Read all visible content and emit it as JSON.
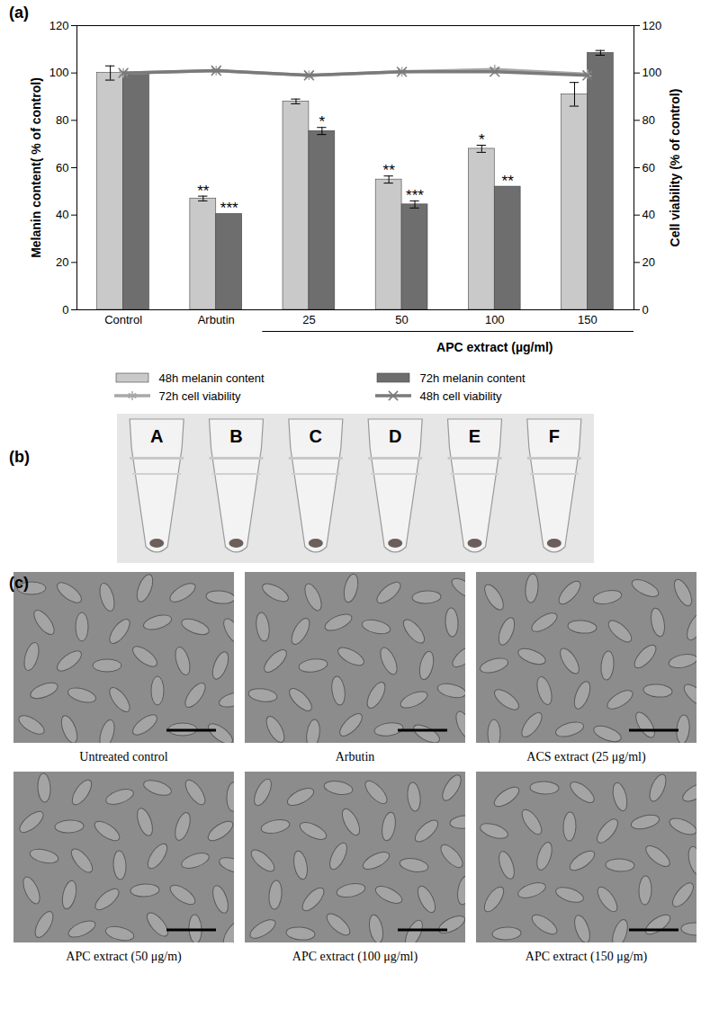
{
  "chart_data": {
    "type": "bar",
    "panel": "(a)",
    "categories": [
      "Control",
      "Arbutin",
      "25",
      "50",
      "100",
      "150"
    ],
    "category_group": {
      "label": "APC extract (µg/ml)",
      "categories": [
        "25",
        "50",
        "100",
        "150"
      ]
    },
    "ylabel": "Melanin content( % of control)",
    "y2label": "Cell viability (% of control)",
    "ylim": [
      0,
      120
    ],
    "yticks": [
      0,
      20,
      40,
      60,
      80,
      100,
      120
    ],
    "y2lim": [
      0,
      120
    ],
    "y2ticks": [
      0,
      20,
      40,
      60,
      80,
      100,
      120
    ],
    "legend": "bottom",
    "series": [
      {
        "name": "48h melanin content",
        "type": "bar",
        "color": "#c9c9c9",
        "values": [
          100,
          47,
          88,
          55,
          68,
          91
        ],
        "errors": [
          3,
          1,
          1,
          1.5,
          1.5,
          5
        ],
        "significance": [
          null,
          "**",
          null,
          "**",
          "*",
          null
        ]
      },
      {
        "name": "72h melanin content",
        "type": "bar",
        "color": "#6e6e6e",
        "values": [
          100,
          40.5,
          75.5,
          44.5,
          52,
          108.5
        ],
        "errors": [
          0,
          0,
          1.5,
          1.5,
          0,
          1
        ],
        "significance": [
          null,
          "***",
          "*",
          "***",
          "**",
          null
        ]
      },
      {
        "name": "72h cell viability",
        "type": "line",
        "axis": "y2",
        "color": "#a8a8a8",
        "marker": "asterisk",
        "values": [
          100,
          101,
          99,
          100.5,
          101.5,
          99.5
        ]
      },
      {
        "name": "48h cell viability",
        "type": "line",
        "axis": "y2",
        "color": "#7a7a7a",
        "marker": "times",
        "values": [
          100,
          101,
          99,
          100.5,
          100.5,
          99
        ]
      }
    ]
  },
  "tube_panel": {
    "panel": "(b)",
    "labels": [
      "A",
      "B",
      "C",
      "D",
      "E",
      "F"
    ]
  },
  "image_panel": {
    "panel": "(c)",
    "captions": [
      "Untreated control",
      "Arbutin",
      "ACS extract (25 μg/ml)",
      "APC extract (50 μg/m)",
      "APC extract (100 μg/ml)",
      "APC extract (150 μg/m)"
    ]
  }
}
